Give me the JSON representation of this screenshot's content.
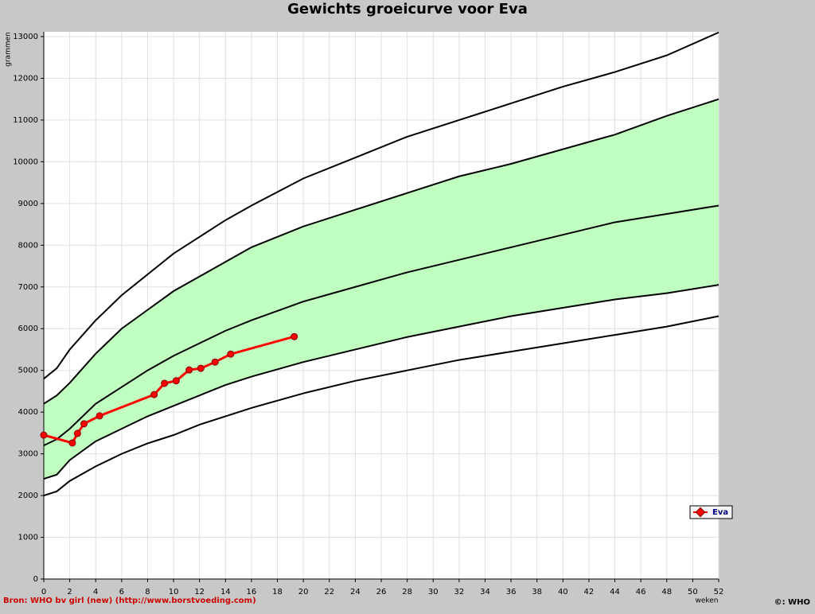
{
  "chart_data": {
    "type": "line",
    "title": "Gewichts groeicurve voor Eva",
    "y_label": "grammen",
    "x_label": "weken",
    "xlim": [
      0,
      52
    ],
    "ylim": [
      0,
      13000
    ],
    "xticks": [
      0,
      2,
      4,
      6,
      8,
      10,
      12,
      14,
      16,
      18,
      20,
      22,
      24,
      26,
      28,
      30,
      32,
      34,
      36,
      38,
      40,
      42,
      44,
      46,
      48,
      50,
      52
    ],
    "yticks": [
      0,
      1000,
      2000,
      3000,
      4000,
      5000,
      6000,
      7000,
      8000,
      9000,
      10000,
      11000,
      12000,
      13000
    ],
    "grid": true,
    "reference": {
      "x": [
        0,
        1,
        2,
        4,
        6,
        8,
        10,
        12,
        14,
        16,
        20,
        24,
        28,
        32,
        36,
        40,
        44,
        48,
        52
      ],
      "color": "#000000",
      "band_color": "#c0ffc0",
      "curves": [
        {
          "values": [
            2000,
            2100,
            2350,
            2700,
            3000,
            3250,
            3450,
            3700,
            3900,
            4100,
            4450,
            4750,
            5000,
            5250,
            5450,
            5650,
            5850,
            6050,
            6300
          ]
        },
        {
          "values": [
            2400,
            2500,
            2850,
            3300,
            3600,
            3900,
            4150,
            4400,
            4650,
            4850,
            5200,
            5500,
            5800,
            6050,
            6300,
            6500,
            6700,
            6850,
            7050
          ]
        },
        {
          "values": [
            3200,
            3350,
            3600,
            4200,
            4600,
            5000,
            5350,
            5650,
            5950,
            6200,
            6650,
            7000,
            7350,
            7650,
            7950,
            8250,
            8550,
            8750,
            8950
          ]
        },
        {
          "values": [
            4200,
            4400,
            4700,
            5400,
            6000,
            6450,
            6900,
            7250,
            7600,
            7950,
            8450,
            8850,
            9250,
            9650,
            9950,
            10300,
            10650,
            11100,
            11500
          ]
        },
        {
          "values": [
            4800,
            5050,
            5500,
            6200,
            6800,
            7300,
            7800,
            8200,
            8600,
            8950,
            9600,
            10100,
            10600,
            11000,
            11400,
            11800,
            12150,
            12550,
            13100
          ]
        }
      ]
    },
    "series": [
      {
        "name": "Eva",
        "color": "#ff0000",
        "x": [
          0,
          2.2,
          2.6,
          3.1,
          4.3,
          8.5,
          9.3,
          10.2,
          11.2,
          12.1,
          13.2,
          14.4,
          19.3
        ],
        "values": [
          3450,
          3260,
          3490,
          3720,
          3910,
          4420,
          4690,
          4750,
          5010,
          5050,
          5200,
          5390,
          5810
        ]
      }
    ],
    "source": "Bron: WHO bv girl (new) (http://www.borstvoeding.com)",
    "copyright": "©: WHO"
  }
}
